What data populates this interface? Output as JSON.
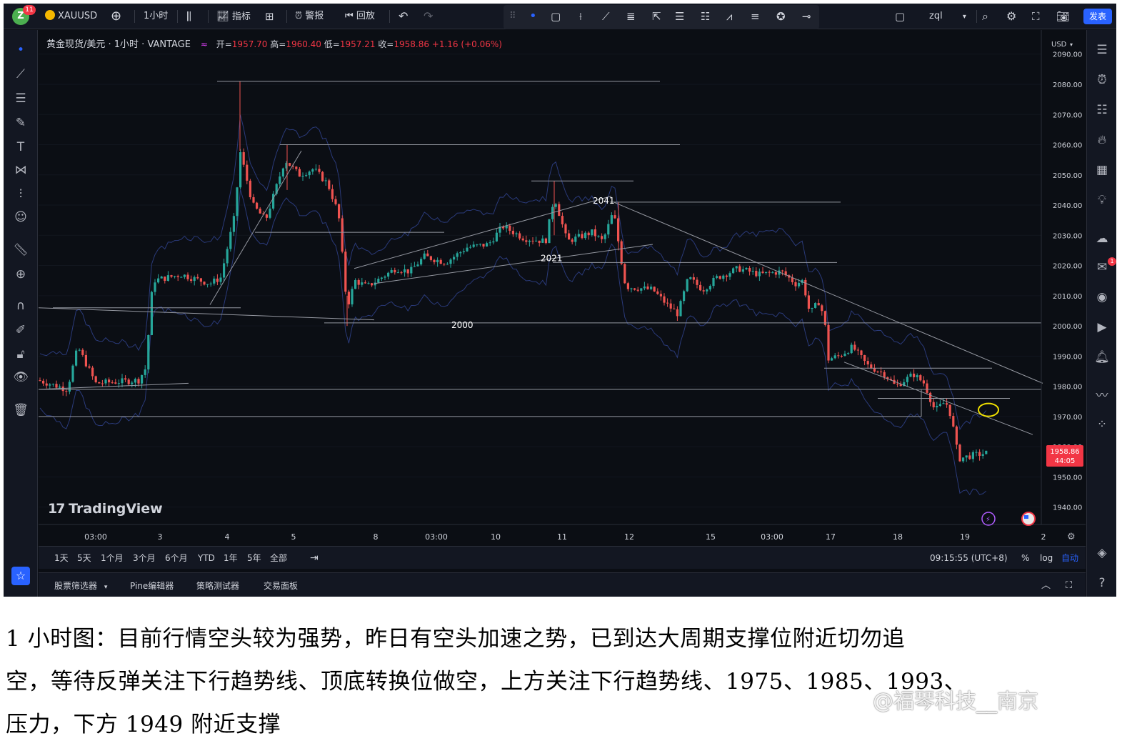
{
  "topbar": {
    "avatar_letter": "Z",
    "notification_count": "11",
    "symbol": "XAUUSD",
    "interval": "1小时",
    "indicators_label": "指标",
    "alert_label": "警报",
    "replay_label": "回放",
    "layout_name": "zql",
    "publish_label": "发表"
  },
  "legend": {
    "title": "黄金现货/美元 · 1小时 · VANTAGE",
    "open_label": "开=",
    "open_value": "1957.70",
    "high_label": "高=",
    "high_value": "1960.40",
    "low_label": "低=",
    "low_value": "1957.21",
    "close_label": "收=",
    "close_value": "1958.86",
    "change": "+1.16 (+0.06%)"
  },
  "price_axis": {
    "currency": "USD",
    "ticks": [
      "2090.00",
      "2080.00",
      "2070.00",
      "2060.00",
      "2050.00",
      "2040.00",
      "2030.00",
      "2020.00",
      "2010.00",
      "2000.00",
      "1990.00",
      "1980.00",
      "1970.00",
      "1960.00",
      "1950.00",
      "1940.00"
    ],
    "current_price": "1958.86",
    "countdown": "44:05"
  },
  "time_axis": {
    "ticks": [
      "03:00",
      "3",
      "4",
      "5",
      "8",
      "03:00",
      "10",
      "11",
      "12",
      "15",
      "03:00",
      "17",
      "18",
      "19",
      "2"
    ]
  },
  "chart_annotations": {
    "labels": [
      "2041",
      "2021",
      "2000"
    ]
  },
  "chart_data": {
    "type": "candlestick",
    "symbol": "XAUUSD",
    "interval": "1小时",
    "ylim": [
      1935,
      2092
    ],
    "horizontal_levels": [
      2081,
      2060,
      2048,
      2041,
      2031,
      2021,
      2001,
      1986,
      1979,
      1976,
      1970
    ],
    "bollinger_bands": true,
    "last": {
      "open": 1957.7,
      "high": 1960.4,
      "low": 1957.21,
      "close": 1958.86
    }
  },
  "branding": {
    "logo_text": "TradingView"
  },
  "range_bar": {
    "ranges": [
      "1天",
      "5天",
      "1个月",
      "3个月",
      "6个月",
      "YTD",
      "1年",
      "5年",
      "全部"
    ],
    "clock": "09:15:55 (UTC+8)",
    "percent": "%",
    "log": "log",
    "auto": "自动"
  },
  "bottom_panel": {
    "tabs": [
      "股票筛选器",
      "Pine编辑器",
      "策略测试器",
      "交易面板"
    ]
  },
  "colors": {
    "bull": "#26a69a",
    "bear": "#ef5350",
    "background": "#0b0e14",
    "accent": "#2962ff",
    "highlight_circle": "#f0e000"
  },
  "caption": {
    "line1": "1 小时图：目前行情空头较为强势，昨日有空头加速之势，已到达大周期支撑位附近切勿追",
    "line2": "空，等待反弹关注下行趋势线、顶底转换位做空，上方关注下行趋势线、1975、1985、1993、",
    "line3": "压力，下方 1949 附近支撑"
  },
  "watermark": "@福琴科技__南京"
}
